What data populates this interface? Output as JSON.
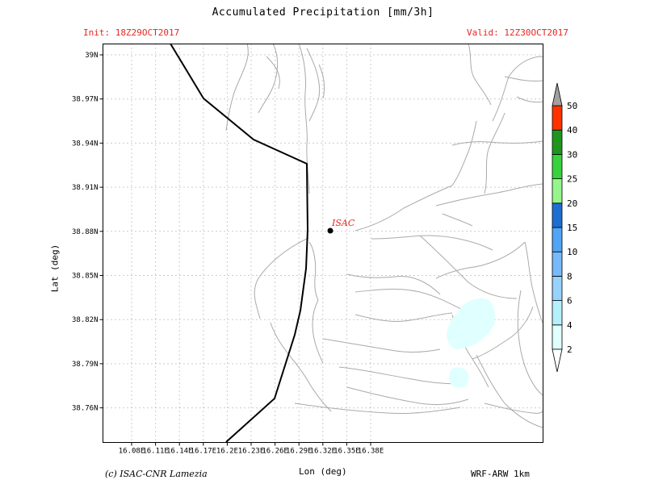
{
  "header": {
    "title": "Accumulated Precipitation [mm/3h]",
    "init": "Init: 18Z29OCT2017",
    "valid": "Valid: 12Z30OCT2017"
  },
  "axes": {
    "xlabel": "Lon (deg)",
    "ylabel": "Lat (deg)",
    "xticks": [
      "16.08E",
      "16.11E",
      "16.14E",
      "16.17E",
      "16.2E",
      "16.23E",
      "16.26E",
      "16.29E",
      "16.32E",
      "16.35E",
      "16.38E"
    ],
    "yticks": [
      "39N",
      "38.97N",
      "38.94N",
      "38.91N",
      "38.88N",
      "38.85N",
      "38.82N",
      "38.79N",
      "38.76N"
    ]
  },
  "station": {
    "label": "ISAC",
    "color": "#e8251f"
  },
  "colorbar": {
    "levels": [
      "2",
      "4",
      "6",
      "8",
      "10",
      "15",
      "20",
      "25",
      "30",
      "40",
      "50"
    ],
    "colors": [
      "#e0ffff",
      "#b4f0fa",
      "#96d2fa",
      "#78b9fa",
      "#50a5f5",
      "#1e6ed2",
      "#96f58c",
      "#37d23c",
      "#1e961e",
      "#ff3200",
      "#a0a0a0"
    ]
  },
  "footer": {
    "credit": "(c) ISAC-CNR Lamezia",
    "model": "WRF-ARW 1km"
  }
}
